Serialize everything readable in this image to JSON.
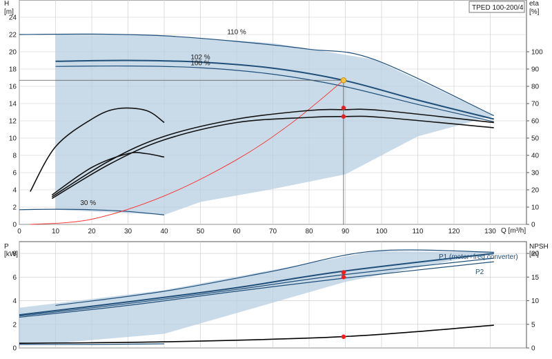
{
  "colors": {
    "envelope": "#b7cde0",
    "envelope_light": "#dbe9f5",
    "curve": "#1f4e79",
    "efficiency": "#111111",
    "system": "#ff2a2a",
    "point": "#ff1a1a",
    "duty": "#f5c242"
  },
  "chart_data": [
    {
      "type": "line",
      "name": "head",
      "title": "TPED 100-200/4",
      "xlabel": "Q [m³/h]",
      "ylabel_left_top": "H",
      "ylabel_left_unit": "[m]",
      "ylabel_right_top": "eta",
      "ylabel_right_unit": "[%]",
      "xlim": [
        0,
        140
      ],
      "ylim": [
        0,
        26
      ],
      "y2lim": [
        0,
        130
      ],
      "xticks": [
        0,
        10,
        20,
        30,
        40,
        50,
        60,
        70,
        80,
        90,
        100,
        110,
        120,
        130
      ],
      "yticks": [
        0,
        2,
        4,
        6,
        8,
        10,
        12,
        14,
        16,
        18,
        20,
        22,
        24
      ],
      "y2ticks": [
        0,
        10,
        20,
        30,
        40,
        50,
        60,
        70,
        80,
        90,
        100
      ],
      "grid": true,
      "duty_point": {
        "q": 89.5,
        "h": 16.7
      },
      "envelope": [
        [
          10,
          22
        ],
        [
          40,
          21.9
        ],
        [
          70,
          21
        ],
        [
          98,
          19.1
        ],
        [
          131,
          12.6
        ],
        [
          110,
          10.2
        ],
        [
          90,
          5.8
        ],
        [
          70,
          4.1
        ],
        [
          50,
          2.6
        ],
        [
          40,
          1.1
        ],
        [
          20,
          1.5
        ],
        [
          10,
          1.7
        ]
      ],
      "series": [
        {
          "name": "110 %",
          "x": [
            0,
            20,
            40,
            60,
            80,
            98,
            131
          ],
          "y": [
            22,
            22.05,
            21.85,
            21.2,
            20.3,
            19.1,
            12.6
          ]
        },
        {
          "name": "102 %",
          "x": [
            10,
            30,
            50,
            70,
            89.5,
            110,
            131
          ],
          "y": [
            18.9,
            19,
            18.8,
            18.1,
            16.7,
            14.4,
            12.2
          ]
        },
        {
          "name": "100 %",
          "x": [
            10,
            30,
            50,
            70,
            89.5,
            110,
            131
          ],
          "y": [
            18.3,
            18.35,
            18.15,
            17.4,
            16.0,
            13.9,
            11.9
          ]
        },
        {
          "name": "30 %",
          "x": [
            0,
            10,
            20,
            30,
            40
          ],
          "y": [
            1.7,
            1.75,
            1.7,
            1.5,
            1.1
          ]
        },
        {
          "name": "",
          "role": "system",
          "x": [
            3,
            20,
            40,
            60,
            75,
            89.5
          ],
          "y": [
            0,
            0.6,
            3.3,
            7.5,
            11.7,
            16.7
          ]
        },
        {
          "name": "",
          "role": "efficiency",
          "unit": "%",
          "x": [
            9,
            25,
            40,
            60,
            80,
            89.5,
            100,
            131
          ],
          "y": [
            16,
            37,
            51,
            61,
            66,
            66.5,
            66,
            59
          ]
        },
        {
          "name": "",
          "role": "efficiency",
          "unit": "%",
          "x": [
            9,
            25,
            40,
            60,
            80,
            89.5,
            100,
            131
          ],
          "y": [
            15,
            35,
            49,
            59,
            62,
            62.5,
            62,
            56
          ]
        },
        {
          "name": "",
          "role": "efficiency",
          "unit": "%",
          "x": [
            3,
            10,
            20,
            27,
            35,
            40
          ],
          "y": [
            19,
            45,
            61,
            67,
            66,
            59
          ]
        },
        {
          "name": "",
          "role": "efficiency",
          "unit": "%",
          "x": [
            9,
            20,
            30,
            35,
            40
          ],
          "y": [
            17,
            33,
            41,
            41,
            39
          ]
        }
      ],
      "points": [
        {
          "x": 89.5,
          "y": 13.5,
          "color": "#ff1a1a"
        },
        {
          "x": 89.5,
          "y": 12.5,
          "color": "#ff1a1a"
        }
      ]
    },
    {
      "type": "line",
      "name": "power",
      "ylabel_left_top": "P",
      "ylabel_left_unit": "[kW]",
      "ylabel_right_top": "NPSH",
      "ylabel_right_unit": "[m]",
      "xlim": [
        0,
        140
      ],
      "ylim": [
        0,
        9
      ],
      "y2lim": [
        0,
        22.5
      ],
      "yticks": [
        0,
        2,
        4,
        6,
        8
      ],
      "y2ticks": [
        0,
        5,
        10,
        15,
        20
      ],
      "grid": true,
      "envelope": [
        [
          0,
          3.4
        ],
        [
          40,
          4.9
        ],
        [
          98,
          8.2
        ],
        [
          131,
          8.1
        ],
        [
          90,
          5.6
        ],
        [
          40,
          1.2
        ],
        [
          10,
          0.4
        ],
        [
          0,
          0.3
        ]
      ],
      "series": [
        {
          "name": "P1 (motor+freq.converter)",
          "x": [
            0,
            30,
            60,
            89.5,
            131
          ],
          "y": [
            2.8,
            3.9,
            5.1,
            6.5,
            8.0
          ]
        },
        {
          "name": "P2",
          "x": [
            0,
            30,
            60,
            89.5,
            131
          ],
          "y": [
            2.6,
            3.6,
            4.8,
            5.9,
            7.3
          ]
        },
        {
          "name": "",
          "x": [
            0,
            30,
            60,
            89.5,
            131
          ],
          "y": [
            2.7,
            3.75,
            4.95,
            6.2,
            7.6
          ]
        },
        {
          "name": "",
          "x": [
            10,
            40,
            70,
            98,
            131
          ],
          "y": [
            3.6,
            4.8,
            6.5,
            8.2,
            8.1
          ]
        },
        {
          "name": "",
          "x": [
            0,
            20,
            40
          ],
          "y": [
            0.3,
            0.3,
            0.35
          ]
        },
        {
          "name": "",
          "role": "npsh",
          "unit": "m",
          "x": [
            0,
            40,
            89.5,
            131
          ],
          "y": [
            1.0,
            1.3,
            2.4,
            4.8
          ]
        }
      ],
      "points": [
        {
          "x": 89.5,
          "y": 6.4,
          "color": "#ff1a1a"
        },
        {
          "x": 89.5,
          "y": 6.0,
          "color": "#ff1a1a"
        },
        {
          "x": 89.5,
          "y": 0.95,
          "color": "#ff1a1a"
        }
      ]
    }
  ]
}
